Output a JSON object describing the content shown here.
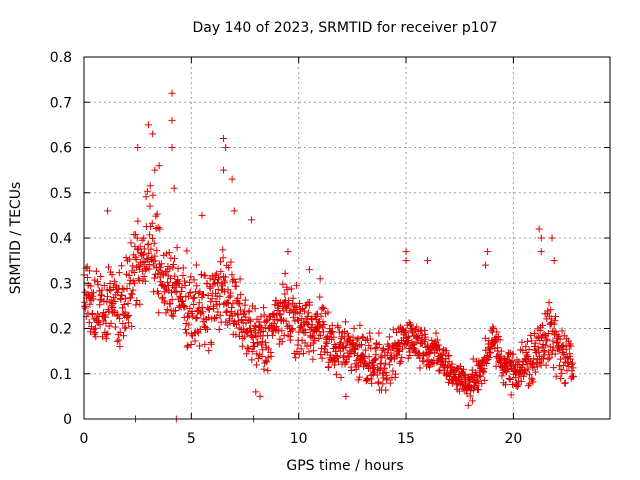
{
  "chart_data": {
    "type": "scatter",
    "title": "Day 140 of 2023, SRMTID for receiver p107",
    "xlabel": "GPS time / hours",
    "ylabel": "SRMTID / TECUs",
    "xlim": [
      0,
      24.5
    ],
    "ylim": [
      0,
      0.8
    ],
    "xticks": [
      0,
      5,
      10,
      15,
      20
    ],
    "xtick_labels": [
      "0",
      "5",
      "10",
      "15",
      "20"
    ],
    "yticks": [
      0,
      0.1,
      0.2,
      0.3,
      0.4,
      0.5,
      0.6,
      0.7,
      0.8
    ],
    "ytick_labels": [
      "0",
      "0.1",
      "0.2",
      "0.3",
      "0.4",
      "0.5",
      "0.6",
      "0.7",
      "0.8"
    ],
    "grid": true,
    "marker": "plus",
    "color": "#e00000",
    "series": [
      {
        "name": "SRMTID",
        "trend": [
          [
            0.0,
            0.28
          ],
          [
            0.5,
            0.24
          ],
          [
            1.0,
            0.26
          ],
          [
            1.5,
            0.25
          ],
          [
            2.0,
            0.27
          ],
          [
            2.5,
            0.33
          ],
          [
            3.0,
            0.4
          ],
          [
            3.5,
            0.33
          ],
          [
            4.0,
            0.3
          ],
          [
            4.5,
            0.27
          ],
          [
            5.0,
            0.25
          ],
          [
            5.5,
            0.24
          ],
          [
            6.0,
            0.25
          ],
          [
            6.5,
            0.3
          ],
          [
            7.0,
            0.24
          ],
          [
            7.5,
            0.21
          ],
          [
            8.0,
            0.17
          ],
          [
            8.5,
            0.18
          ],
          [
            9.0,
            0.22
          ],
          [
            9.5,
            0.24
          ],
          [
            10.0,
            0.2
          ],
          [
            10.5,
            0.21
          ],
          [
            11.0,
            0.2
          ],
          [
            11.5,
            0.16
          ],
          [
            12.0,
            0.15
          ],
          [
            12.5,
            0.16
          ],
          [
            13.0,
            0.14
          ],
          [
            13.5,
            0.13
          ],
          [
            14.0,
            0.11
          ],
          [
            14.5,
            0.14
          ],
          [
            15.0,
            0.19
          ],
          [
            15.5,
            0.17
          ],
          [
            16.0,
            0.16
          ],
          [
            16.5,
            0.14
          ],
          [
            17.0,
            0.11
          ],
          [
            17.5,
            0.09
          ],
          [
            18.0,
            0.08
          ],
          [
            18.5,
            0.1
          ],
          [
            19.0,
            0.18
          ],
          [
            19.5,
            0.12
          ],
          [
            20.0,
            0.11
          ],
          [
            20.5,
            0.12
          ],
          [
            21.0,
            0.13
          ],
          [
            21.5,
            0.2
          ],
          [
            22.0,
            0.16
          ],
          [
            22.5,
            0.13
          ],
          [
            22.8,
            0.11
          ]
        ],
        "spread": [
          [
            0.0,
            0.06
          ],
          [
            2.0,
            0.08
          ],
          [
            3.0,
            0.1
          ],
          [
            4.5,
            0.08
          ],
          [
            7.0,
            0.07
          ],
          [
            10.0,
            0.06
          ],
          [
            14.0,
            0.05
          ],
          [
            17.5,
            0.03
          ],
          [
            20.0,
            0.04
          ],
          [
            21.5,
            0.07
          ],
          [
            22.8,
            0.04
          ]
        ],
        "outliers": [
          [
            4.1,
            0.72
          ],
          [
            4.1,
            0.66
          ],
          [
            3.0,
            0.65
          ],
          [
            3.2,
            0.63
          ],
          [
            2.5,
            0.6
          ],
          [
            4.1,
            0.6
          ],
          [
            6.5,
            0.62
          ],
          [
            6.6,
            0.6
          ],
          [
            6.5,
            0.55
          ],
          [
            6.9,
            0.53
          ],
          [
            3.5,
            0.56
          ],
          [
            3.3,
            0.55
          ],
          [
            4.2,
            0.51
          ],
          [
            5.5,
            0.45
          ],
          [
            7.0,
            0.46
          ],
          [
            7.8,
            0.44
          ],
          [
            1.1,
            0.46
          ],
          [
            9.5,
            0.37
          ],
          [
            10.5,
            0.33
          ],
          [
            11.0,
            0.31
          ],
          [
            15.0,
            0.37
          ],
          [
            15.0,
            0.35
          ],
          [
            16.0,
            0.35
          ],
          [
            18.8,
            0.37
          ],
          [
            18.7,
            0.34
          ],
          [
            21.2,
            0.42
          ],
          [
            21.3,
            0.4
          ],
          [
            21.8,
            0.4
          ],
          [
            21.9,
            0.35
          ],
          [
            21.3,
            0.37
          ],
          [
            2.4,
            0.0
          ],
          [
            4.3,
            0.0
          ],
          [
            7.9,
            0.0
          ],
          [
            8.0,
            0.06
          ],
          [
            8.2,
            0.05
          ],
          [
            17.9,
            0.03
          ],
          [
            18.1,
            0.04
          ],
          [
            12.2,
            0.05
          ]
        ]
      }
    ]
  }
}
